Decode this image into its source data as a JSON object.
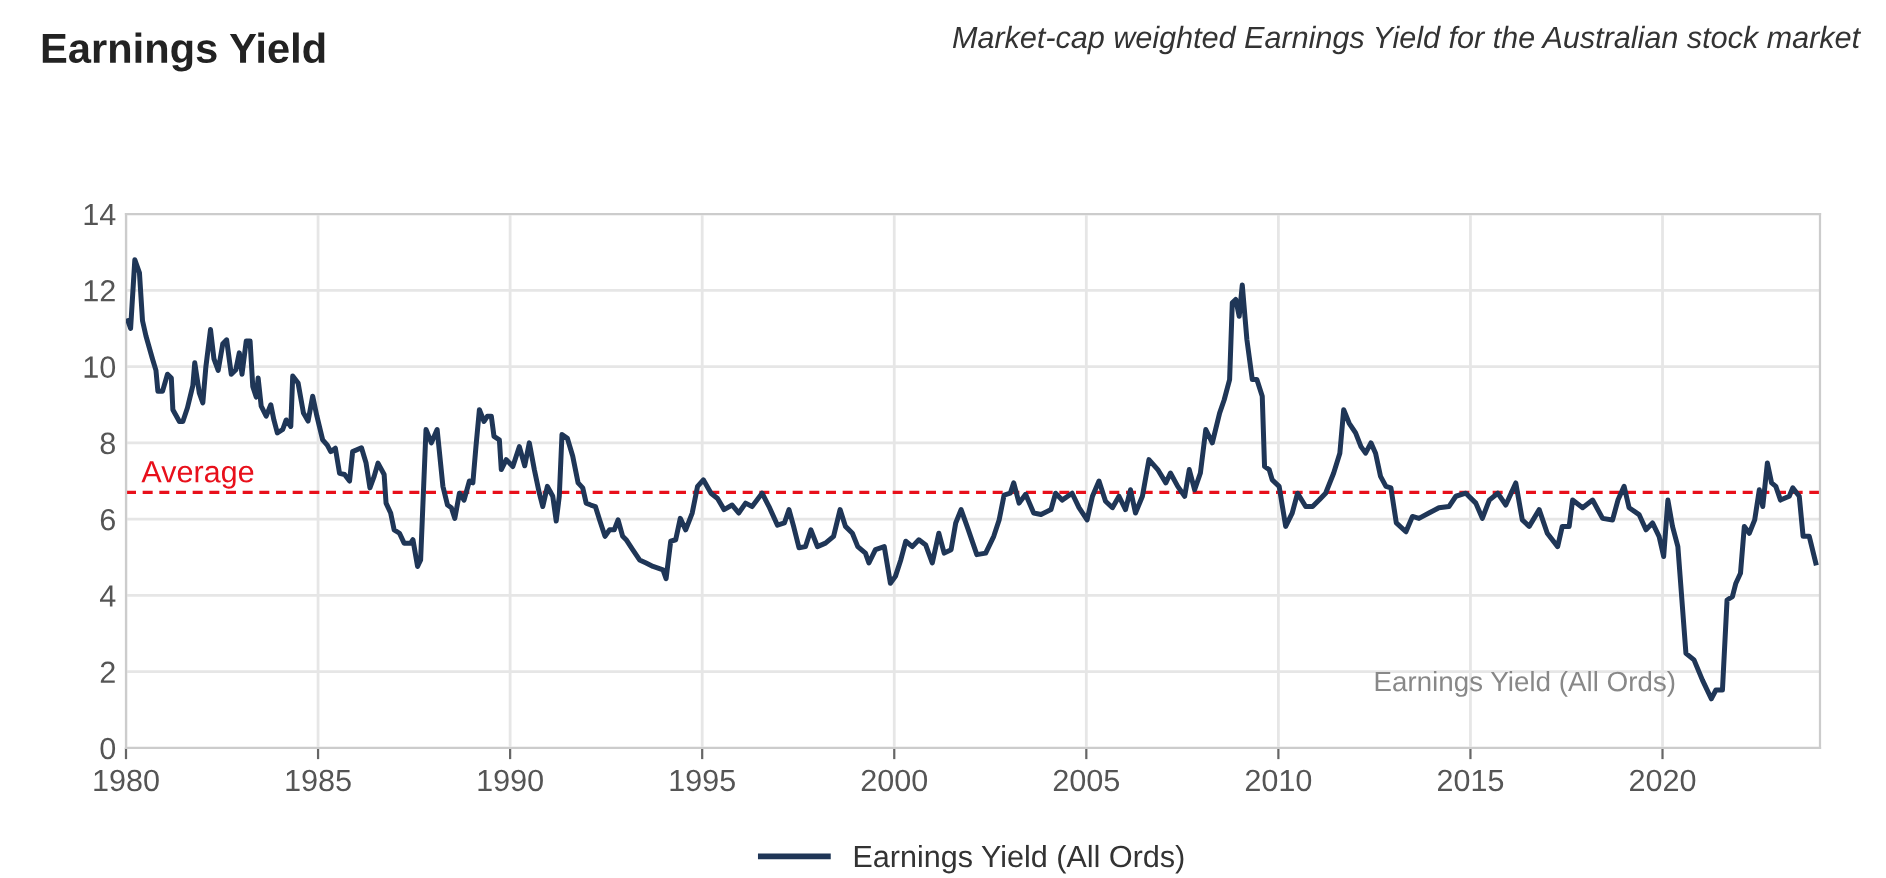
{
  "chart_data": {
    "type": "line",
    "title": "Earnings Yield",
    "subtitle": "Market-cap weighted Earnings Yield for the Australian stock market",
    "annotations": [
      "Earnings Yield (All Ords)"
    ],
    "xlim": [
      1980,
      2024.1
    ],
    "xticks": [
      1980,
      1985,
      1990,
      1995,
      2000,
      2005,
      2010,
      2015,
      2020
    ],
    "ylim": [
      0,
      14
    ],
    "yticks": [
      0,
      2,
      4,
      6,
      8,
      10,
      12,
      14
    ],
    "grid": true,
    "legend": "bottom",
    "marker": "none",
    "line_style": "solid",
    "ref_lines": [
      {
        "axis": "y",
        "value": 6.7,
        "label": "Average",
        "color": "#e8101b",
        "line_style": "dashed"
      }
    ],
    "series": [
      {
        "name": "Earnings Yield (All Ords)",
        "color": "#1f3657",
        "x": [
          1980.05,
          1980.12,
          1980.23,
          1980.35,
          1980.43,
          1980.52,
          1980.69,
          1980.78,
          1980.83,
          1980.95,
          1981.08,
          1981.18,
          1981.22,
          1981.39,
          1981.48,
          1981.6,
          1981.74,
          1981.79,
          1981.91,
          1982.0,
          1982.08,
          1982.2,
          1982.29,
          1982.4,
          1982.52,
          1982.62,
          1982.74,
          1982.86,
          1982.95,
          1983.02,
          1983.13,
          1983.23,
          1983.3,
          1983.39,
          1983.44,
          1983.52,
          1983.65,
          1983.77,
          1983.85,
          1983.94,
          1984.08,
          1984.17,
          1984.29,
          1984.34,
          1984.48,
          1984.62,
          1984.74,
          1984.86,
          1984.97,
          1985.12,
          1985.24,
          1985.33,
          1985.45,
          1985.56,
          1985.69,
          1985.82,
          1985.9,
          1986.13,
          1986.25,
          1986.35,
          1986.46,
          1986.56,
          1986.72,
          1986.77,
          1986.89,
          1986.98,
          1987.12,
          1987.24,
          1987.41,
          1987.47,
          1987.59,
          1987.67,
          1987.81,
          1987.95,
          1988.1,
          1988.25,
          1988.37,
          1988.47,
          1988.56,
          1988.68,
          1988.8,
          1988.94,
          1989.03,
          1989.11,
          1989.2,
          1989.32,
          1989.41,
          1989.51,
          1989.58,
          1989.72,
          1989.77,
          1989.9,
          1990.07,
          1990.24,
          1990.38,
          1990.5,
          1990.63,
          1990.76,
          1990.85,
          1990.97,
          1991.11,
          1991.2,
          1991.28,
          1991.35,
          1991.49,
          1991.63,
          1991.77,
          1991.89,
          1991.98,
          1992.1,
          1992.22,
          1992.33,
          1992.47,
          1992.59,
          1992.71,
          1992.81,
          1992.93,
          1993.02,
          1993.19,
          1993.37,
          1993.54,
          1993.72,
          1993.98,
          1994.06,
          1994.18,
          1994.31,
          1994.43,
          1994.57,
          1994.74,
          1994.88,
          1995.03,
          1995.23,
          1995.4,
          1995.57,
          1995.78,
          1995.95,
          1996.13,
          1996.3,
          1996.56,
          1996.74,
          1996.96,
          1997.14,
          1997.26,
          1997.38,
          1997.52,
          1997.69,
          1997.83,
          1998.0,
          1998.21,
          1998.42,
          1998.59,
          1998.73,
          1998.91,
          1999.05,
          1999.25,
          1999.34,
          1999.51,
          1999.74,
          1999.9,
          2000.03,
          2000.17,
          2000.3,
          2000.47,
          2000.64,
          2000.82,
          2000.99,
          2001.16,
          2001.3,
          2001.48,
          2001.6,
          2001.74,
          2001.91,
          2002.15,
          2002.38,
          2002.59,
          2002.73,
          2002.86,
          2003.02,
          2003.11,
          2003.25,
          2003.42,
          2003.63,
          2003.82,
          2004.08,
          2004.2,
          2004.37,
          2004.63,
          2004.81,
          2005.02,
          2005.16,
          2005.33,
          2005.5,
          2005.68,
          2005.85,
          2006.02,
          2006.15,
          2006.28,
          2006.46,
          2006.63,
          2006.86,
          2007.07,
          2007.19,
          2007.38,
          2007.56,
          2007.68,
          2007.82,
          2007.97,
          2008.11,
          2008.28,
          2008.47,
          2008.59,
          2008.73,
          2008.8,
          2008.89,
          2008.98,
          2009.06,
          2009.18,
          2009.32,
          2009.44,
          2009.58,
          2009.64,
          2009.76,
          2009.84,
          2010.02,
          2010.19,
          2010.36,
          2010.5,
          2010.71,
          2010.89,
          2011.06,
          2011.23,
          2011.44,
          2011.6,
          2011.7,
          2011.84,
          2012.01,
          2012.15,
          2012.27,
          2012.41,
          2012.53,
          2012.66,
          2012.8,
          2012.93,
          2013.07,
          2013.32,
          2013.49,
          2013.66,
          2013.92,
          2014.18,
          2014.44,
          2014.62,
          2014.88,
          2015.14,
          2015.31,
          2015.49,
          2015.71,
          2015.92,
          2016.18,
          2016.35,
          2016.53,
          2016.79,
          2017.0,
          2017.27,
          2017.39,
          2017.57,
          2017.66,
          2017.92,
          2018.18,
          2018.44,
          2018.7,
          2018.84,
          2019.0,
          2019.13,
          2019.39,
          2019.57,
          2019.74,
          2019.91,
          2020.03,
          2020.14,
          2020.26,
          2020.4,
          2020.61,
          2020.82,
          2021.04,
          2021.27,
          2021.39,
          2021.56,
          2021.68,
          2021.82,
          2021.91,
          2022.03,
          2022.13,
          2022.26,
          2022.4,
          2022.52,
          2022.61,
          2022.73,
          2022.84,
          2022.95,
          2023.07,
          2023.3,
          2023.39,
          2023.56,
          2023.66,
          2023.82,
          2023.99
        ],
        "values": [
          11.2,
          11.0,
          12.8,
          12.46,
          11.2,
          10.8,
          10.2,
          9.9,
          9.35,
          9.35,
          9.8,
          9.7,
          8.87,
          8.56,
          8.56,
          8.92,
          9.5,
          10.1,
          9.3,
          9.05,
          10.0,
          10.97,
          10.2,
          9.9,
          10.6,
          10.7,
          9.8,
          9.92,
          10.36,
          9.8,
          10.67,
          10.67,
          9.48,
          9.2,
          9.7,
          8.96,
          8.7,
          9.0,
          8.6,
          8.26,
          8.35,
          8.6,
          8.43,
          9.75,
          9.57,
          8.78,
          8.57,
          9.22,
          8.7,
          8.08,
          7.94,
          7.77,
          7.86,
          7.2,
          7.17,
          7.0,
          7.77,
          7.87,
          7.47,
          6.82,
          7.12,
          7.47,
          7.17,
          6.42,
          6.16,
          5.72,
          5.63,
          5.37,
          5.37,
          5.46,
          4.76,
          4.93,
          8.35,
          8.0,
          8.35,
          6.86,
          6.37,
          6.3,
          6.02,
          6.68,
          6.5,
          7.0,
          6.95,
          7.9,
          8.87,
          8.56,
          8.7,
          8.7,
          8.17,
          8.08,
          7.3,
          7.56,
          7.38,
          7.9,
          7.4,
          8.0,
          7.3,
          6.68,
          6.33,
          6.86,
          6.6,
          5.95,
          6.6,
          8.22,
          8.12,
          7.65,
          6.95,
          6.82,
          6.42,
          6.37,
          6.33,
          5.98,
          5.55,
          5.72,
          5.72,
          5.98,
          5.55,
          5.46,
          5.2,
          4.93,
          4.85,
          4.76,
          4.67,
          4.44,
          5.42,
          5.46,
          6.02,
          5.72,
          6.16,
          6.86,
          7.03,
          6.68,
          6.54,
          6.25,
          6.37,
          6.16,
          6.42,
          6.33,
          6.68,
          6.33,
          5.84,
          5.9,
          6.25,
          5.81,
          5.25,
          5.28,
          5.72,
          5.28,
          5.37,
          5.55,
          6.25,
          5.81,
          5.63,
          5.28,
          5.11,
          4.85,
          5.2,
          5.28,
          4.32,
          4.5,
          4.93,
          5.42,
          5.28,
          5.46,
          5.32,
          4.85,
          5.63,
          5.11,
          5.2,
          5.9,
          6.25,
          5.77,
          5.07,
          5.11,
          5.55,
          5.98,
          6.63,
          6.68,
          6.95,
          6.42,
          6.65,
          6.16,
          6.12,
          6.25,
          6.68,
          6.5,
          6.68,
          6.3,
          5.98,
          6.6,
          7.0,
          6.47,
          6.3,
          6.6,
          6.25,
          6.77,
          6.16,
          6.6,
          7.56,
          7.3,
          6.95,
          7.21,
          6.86,
          6.6,
          7.3,
          6.77,
          7.21,
          8.35,
          8.0,
          8.78,
          9.13,
          9.66,
          11.67,
          11.76,
          11.32,
          12.14,
          10.71,
          9.66,
          9.66,
          9.22,
          7.38,
          7.3,
          7.03,
          6.86,
          5.81,
          6.16,
          6.68,
          6.33,
          6.33,
          6.5,
          6.68,
          7.21,
          7.73,
          8.87,
          8.52,
          8.26,
          7.9,
          7.73,
          8.0,
          7.73,
          7.12,
          6.86,
          6.82,
          5.9,
          5.67,
          6.07,
          6.02,
          6.16,
          6.3,
          6.33,
          6.6,
          6.68,
          6.42,
          6.02,
          6.5,
          6.68,
          6.37,
          6.95,
          5.98,
          5.81,
          6.25,
          5.63,
          5.28,
          5.81,
          5.81,
          6.5,
          6.3,
          6.5,
          6.02,
          5.98,
          6.5,
          6.86,
          6.3,
          6.12,
          5.72,
          5.9,
          5.55,
          5.02,
          6.5,
          5.81,
          5.28,
          2.48,
          2.31,
          1.78,
          1.29,
          1.52,
          1.52,
          3.88,
          3.97,
          4.32,
          4.58,
          5.81,
          5.63,
          5.98,
          6.77,
          6.33,
          7.47,
          6.95,
          6.86,
          6.5,
          6.6,
          6.82,
          6.6,
          5.55,
          5.55,
          4.85
        ]
      }
    ]
  }
}
